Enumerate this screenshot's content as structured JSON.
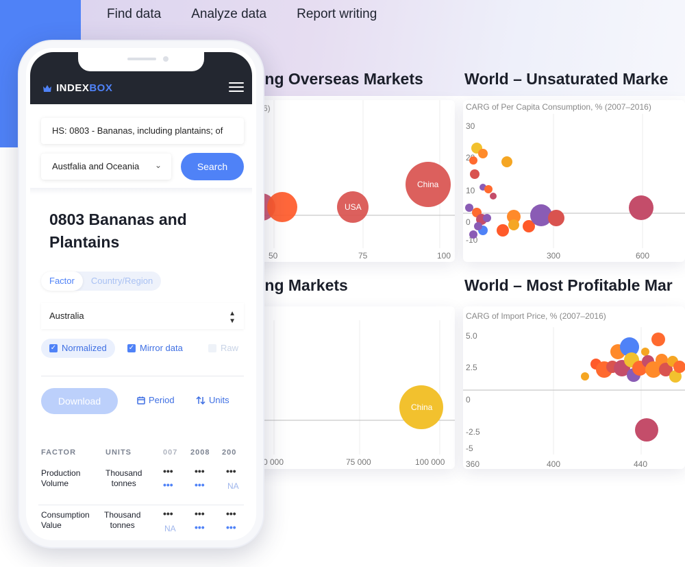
{
  "nav": {
    "items": [
      "Find data",
      "Analyze data",
      "Report writing"
    ]
  },
  "panels": {
    "p1": {
      "title": "ing Overseas Markets",
      "ylabel": "6)",
      "xticks": [
        "50",
        "75",
        "100"
      ]
    },
    "p2": {
      "title": "World – Unsaturated Marke",
      "ylabel": "CARG of Per Capita Consumption, % (2007–2016)",
      "yticks": [
        "30",
        "20",
        "10",
        "0",
        "-10"
      ],
      "xticks": [
        "300",
        "600"
      ]
    },
    "p3": {
      "title": "ing Markets",
      "xticks": [
        "0 000",
        "75 000",
        "100 000"
      ]
    },
    "p4": {
      "title": "World – Most Profitable Mar",
      "ylabel": "CARG of Import Price, % (2007–2016)",
      "yticks": [
        "5.0",
        "2.5",
        "0",
        "-2.5",
        "-5"
      ],
      "xticks": [
        "360",
        "400",
        "440"
      ]
    }
  },
  "bubble_labels": {
    "china": "China",
    "usa": "USA",
    "china2": "China"
  },
  "colors": {
    "accent": "#4f82f7",
    "dark_header": "#232730",
    "red": "#d9534f",
    "orange": "#ff6a2f",
    "yellow": "#f2c12e",
    "purple": "#8a5cb5"
  },
  "phone": {
    "logo_white": "INDEX",
    "logo_blue": "BOX",
    "search_value": "HS: 0803 - Bananas, including plantains; of",
    "region_value": "Austfalia and Oceania",
    "search_button": "Search",
    "product_title": "0803 Bananas and Plantains",
    "seg_factor": "Factor",
    "seg_country": "Country/Region",
    "country_value": "Australia",
    "chip_normalized": "Normalized",
    "chip_mirror": "Mirror data",
    "chip_raw": "Raw",
    "download": "Download",
    "period": "Period",
    "units": "Units",
    "table": {
      "headers": [
        "FACTOR",
        "UNITS",
        "007",
        "2008",
        "200"
      ],
      "rows": [
        {
          "factor_l1": "Production",
          "factor_l2": "Volume",
          "units_l1": "Thousand",
          "units_l2": "tonnes",
          "na": "NA"
        },
        {
          "factor_l1": "Consumption",
          "factor_l2": "Value",
          "units_l1": "Thousand",
          "units_l2": "tonnes",
          "na": "NA"
        }
      ]
    }
  }
}
